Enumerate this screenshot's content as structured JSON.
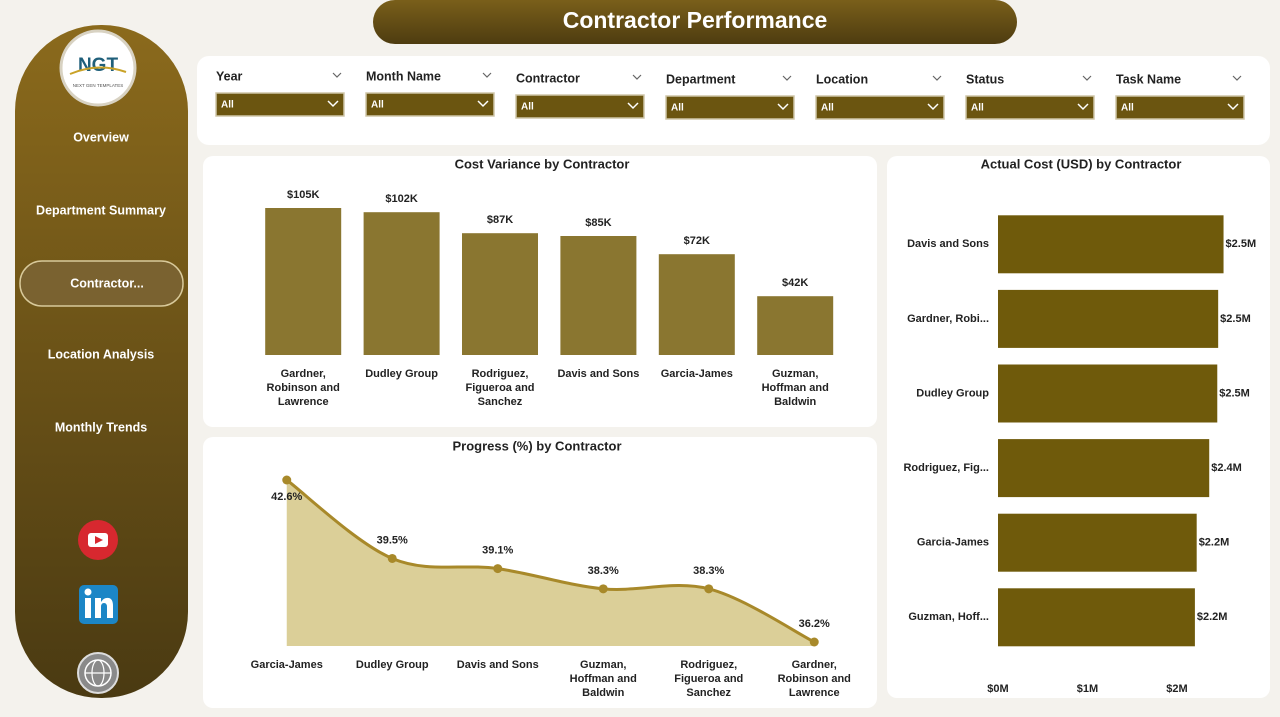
{
  "header": {
    "title": "Contractor Performance"
  },
  "logo": {
    "text": "NGT",
    "subtext": "NEXT GEN TEMPLATES"
  },
  "nav": [
    "Overview",
    "Department Summary",
    "Contractor...",
    "Location Analysis",
    "Monthly Trends"
  ],
  "filters": [
    {
      "label": "Year",
      "value": "All"
    },
    {
      "label": "Month Name",
      "value": "All"
    },
    {
      "label": "Contractor",
      "value": "All"
    },
    {
      "label": "Department",
      "value": "All"
    },
    {
      "label": "Location",
      "value": "All"
    },
    {
      "label": "Status",
      "value": "All"
    },
    {
      "label": "Task Name",
      "value": "All"
    }
  ],
  "chart_data": [
    {
      "type": "bar",
      "title": "Cost Variance by Contractor",
      "color": "#8a7630",
      "categories": [
        "Gardner, Robinson and Lawrence",
        "Dudley Group",
        "Rodriguez, Figueroa and Sanchez",
        "Davis and Sons",
        "Garcia-James",
        "Guzman, Hoffman and Baldwin"
      ],
      "values": [
        105000,
        102000,
        87000,
        85000,
        72000,
        42000
      ],
      "value_labels": [
        "$105K",
        "$102K",
        "$87K",
        "$85K",
        "$72K",
        "$42K"
      ]
    },
    {
      "type": "area",
      "title": "Progress (%) by Contractor",
      "color": "#a8892a",
      "fill": "#dbcf98",
      "categories": [
        "Garcia-James",
        "Dudley Group",
        "Davis and Sons",
        "Guzman, Hoffman and Baldwin",
        "Rodriguez, Figueroa and Sanchez",
        "Gardner, Robinson and Lawrence"
      ],
      "values": [
        42.6,
        39.5,
        39.1,
        38.3,
        38.3,
        36.2
      ],
      "value_labels": [
        "42.6%",
        "39.5%",
        "39.1%",
        "38.3%",
        "38.3%",
        "36.2%"
      ]
    },
    {
      "type": "hbar",
      "title": "Actual Cost (USD) by Contractor",
      "color": "#6f5a0b",
      "categories": [
        "Davis and Sons",
        "Gardner, Robi...",
        "Dudley Group",
        "Rodriguez, Fig...",
        "Garcia-James",
        "Guzman, Hoff..."
      ],
      "values": [
        2.52,
        2.46,
        2.45,
        2.36,
        2.22,
        2.2
      ],
      "value_labels": [
        "$2.5M",
        "$2.5M",
        "$2.5M",
        "$2.4M",
        "$2.2M",
        "$2.2M"
      ],
      "xlim": [
        0,
        2.6
      ],
      "xticks": [
        {
          "value": 0,
          "label": "$0M"
        },
        {
          "value": 1,
          "label": "$1M"
        },
        {
          "value": 2,
          "label": "$2M"
        }
      ]
    }
  ]
}
